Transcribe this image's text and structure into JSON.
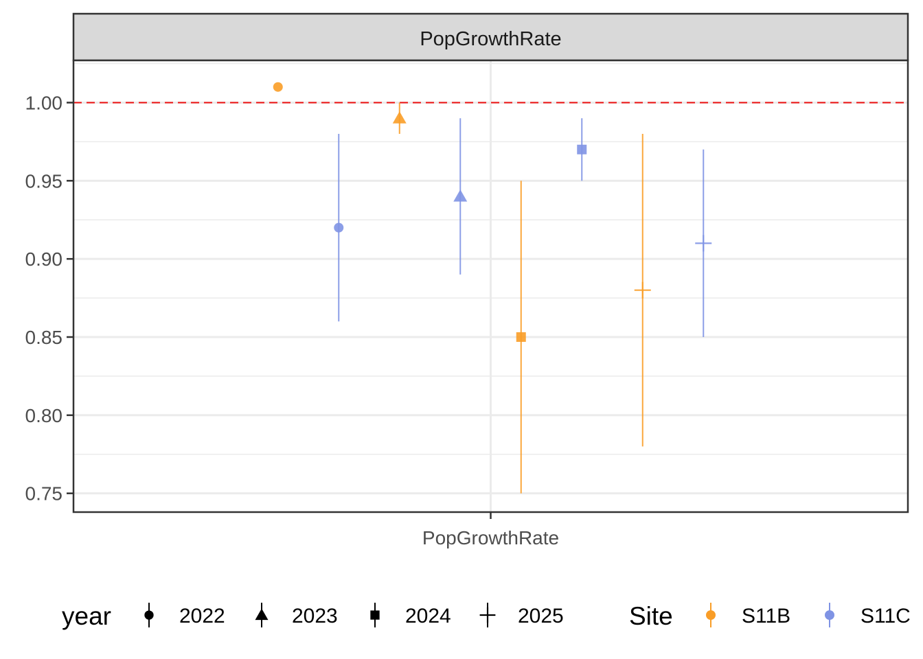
{
  "chart_data": {
    "type": "scatter",
    "facet_label": "PopGrowthRate",
    "x_category": "PopGrowthRate",
    "ylim": [
      0.738,
      1.027
    ],
    "y_ticks": [
      {
        "value": 0.75,
        "label": "0.75"
      },
      {
        "value": 0.8,
        "label": "0.80"
      },
      {
        "value": 0.85,
        "label": "0.85"
      },
      {
        "value": 0.9,
        "label": "0.90"
      },
      {
        "value": 0.95,
        "label": "0.95"
      },
      {
        "value": 1.0,
        "label": "1.00"
      }
    ],
    "reference_line": {
      "y": 1.0,
      "color": "#ee1111",
      "style": "dashed"
    },
    "grid": true,
    "legend_position": "bottom",
    "series": [
      {
        "site": "S11B",
        "year": "2022",
        "shape": "circle",
        "y": 1.01,
        "ymin": 1.01,
        "ymax": 1.01
      },
      {
        "site": "S11C",
        "year": "2022",
        "shape": "circle",
        "y": 0.92,
        "ymin": 0.86,
        "ymax": 0.98
      },
      {
        "site": "S11B",
        "year": "2023",
        "shape": "triangle",
        "y": 0.99,
        "ymin": 0.98,
        "ymax": 1.0
      },
      {
        "site": "S11C",
        "year": "2023",
        "shape": "triangle",
        "y": 0.94,
        "ymin": 0.89,
        "ymax": 0.99
      },
      {
        "site": "S11B",
        "year": "2024",
        "shape": "square",
        "y": 0.85,
        "ymin": 0.75,
        "ymax": 0.95
      },
      {
        "site": "S11C",
        "year": "2024",
        "shape": "square",
        "y": 0.97,
        "ymin": 0.95,
        "ymax": 0.99
      },
      {
        "site": "S11B",
        "year": "2025",
        "shape": "plus",
        "y": 0.88,
        "ymin": 0.78,
        "ymax": 0.98
      },
      {
        "site": "S11C",
        "year": "2025",
        "shape": "plus",
        "y": 0.91,
        "ymin": 0.85,
        "ymax": 0.97
      }
    ],
    "legend": {
      "year": {
        "title": "year",
        "items": [
          {
            "label": "2022",
            "shape": "circle"
          },
          {
            "label": "2023",
            "shape": "triangle"
          },
          {
            "label": "2024",
            "shape": "square"
          },
          {
            "label": "2025",
            "shape": "plus"
          }
        ]
      },
      "site": {
        "title": "Site",
        "items": [
          {
            "label": "S11B",
            "color": "#f99d27"
          },
          {
            "label": "S11C",
            "color": "#7f93e4"
          }
        ]
      }
    }
  }
}
